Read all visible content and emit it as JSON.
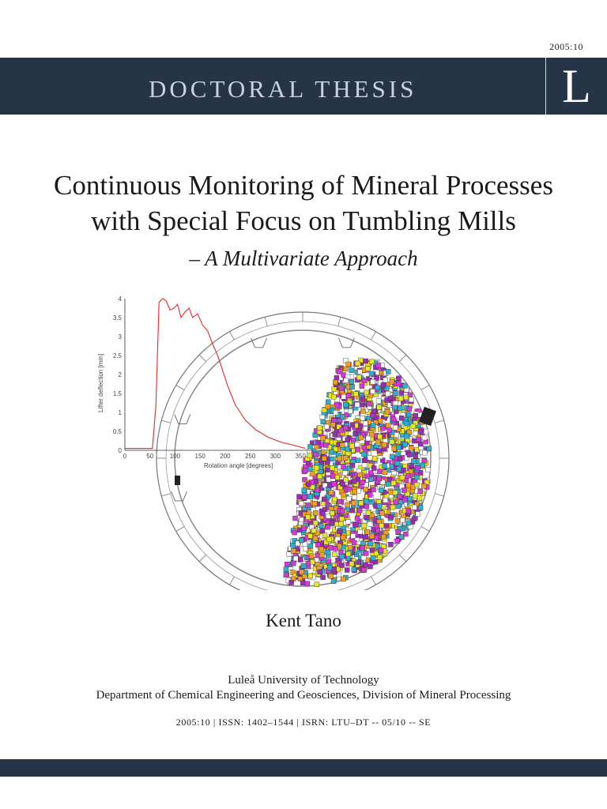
{
  "header": {
    "series_code": "2005:10",
    "banner_title": "DOCTORAL THESIS",
    "logo_letter": "L"
  },
  "title": {
    "line1": "Continuous Monitoring of Mineral Processes",
    "line2": "with Special Focus on Tumbling Mills",
    "subtitle": "– A Multivariate Approach"
  },
  "figure": {
    "plot_y_ticks": [
      "0",
      "0.5",
      "1",
      "1.5",
      "2",
      "2.5",
      "3",
      "3.5",
      "4"
    ],
    "plot_x_ticks": [
      "0",
      "50",
      "100",
      "150",
      "200",
      "250",
      "300",
      "350"
    ],
    "ylabel": "Lifter deflection [mm]",
    "xlabel": "Rotation angle [degrees]",
    "colors": {
      "curve": "#e03a3a",
      "particles": [
        "#e8e820",
        "#9a2fb5",
        "#d43ad4",
        "#f0a020",
        "#30b0d0",
        "#ffffff"
      ]
    }
  },
  "author": "Kent Tano",
  "affiliation": {
    "university": "Luleå University of Technology",
    "department": "Department of Chemical Engineering and Geosciences, Division of Mineral Processing"
  },
  "identifiers": "2005:10 | ISSN: 1402–1544 | ISRN: LTU–DT -- 05/10 -- SE"
}
